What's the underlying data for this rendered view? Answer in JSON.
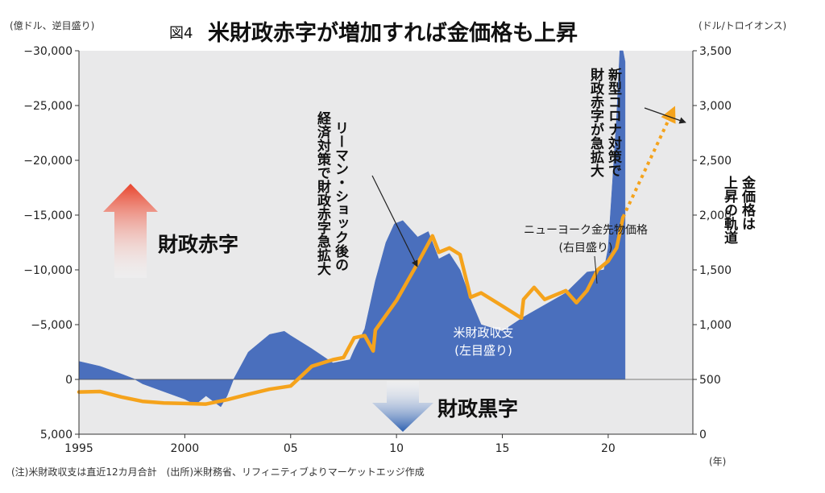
{
  "header": {
    "figure_no": "図4",
    "title": "米財政赤字が増加すれば金価格も上昇",
    "left_unit": "(億ドル、逆目盛り)",
    "right_unit": "(ドル/トロイオンス)"
  },
  "footer": {
    "note": "(注)米財政収支は直近12カ月合計　(出所)米財務省、リフィニティブよりマーケットエッジ作成",
    "year_unit": "(年)"
  },
  "labels": {
    "deficit": "財政赤字",
    "surplus": "財政黒字",
    "lehman_col1": "リーマン・ショック後の",
    "lehman_col2": "経済対策で財政赤字急拡大",
    "covid_col1": "新型コロナ対策で",
    "covid_col2": "財政赤字が急拡大",
    "gold_col1": "金価格は",
    "gold_col2": "上昇の軌道",
    "gold_series_1": "ニューヨーク金先物価格",
    "gold_series_2": "(右目盛り)",
    "balance_series_1": "米財政収支",
    "balance_series_2": "(左目盛り)"
  },
  "colors": {
    "balance": "#4a6fbd",
    "gold": "#f5a31c",
    "deficit_arrow": "#e8442c",
    "surplus_arrow": "#2c5fb0"
  },
  "chart_data": {
    "type": "area",
    "x_axis": {
      "range": [
        1995,
        2024
      ],
      "ticks": [
        1995,
        2000,
        2005,
        2010,
        2015,
        2020
      ],
      "tick_labels": [
        "1995",
        "2000",
        "05",
        "10",
        "15",
        "20"
      ]
    },
    "left_axis": {
      "inverted": true,
      "range": [
        5000,
        -30000
      ],
      "ticks": [
        5000,
        0,
        -5000,
        -10000,
        -15000,
        -20000,
        -25000,
        -30000
      ],
      "tick_labels": [
        "5,000",
        "0",
        "−5,000",
        "−10,000",
        "−15,000",
        "−20,000",
        "−25,000",
        "−30,000"
      ]
    },
    "right_axis": {
      "range": [
        0,
        3500
      ],
      "ticks": [
        0,
        500,
        1000,
        1500,
        2000,
        2500,
        3000,
        3500
      ],
      "tick_labels": [
        "0",
        "500",
        "1,000",
        "1,500",
        "2,000",
        "2,500",
        "3,000",
        "3,500"
      ]
    },
    "grid": false,
    "series": [
      {
        "name": "米財政収支",
        "type": "area",
        "axis": "left",
        "x": [
          1995,
          1996,
          1997,
          1997.6,
          1998,
          1999,
          2000,
          2000.5,
          2001,
          2001.7,
          2002,
          2002.3,
          2003,
          2004,
          2004.7,
          2005,
          2006,
          2007,
          2007.8,
          2008,
          2008.5,
          2009,
          2009.5,
          2009.9,
          2010.3,
          2011,
          2011.5,
          2012,
          2012.5,
          2013,
          2013.5,
          2014,
          2015,
          2016,
          2017,
          2018,
          2019,
          2019.8,
          2020,
          2020.2,
          2020.4,
          2020.55,
          2020.7,
          2020.8
        ],
        "values": [
          -1650,
          -1200,
          -500,
          -50,
          400,
          1100,
          1800,
          2300,
          1500,
          2500,
          1500,
          0,
          -2500,
          -4100,
          -4400,
          -4000,
          -2800,
          -1500,
          -1800,
          -2700,
          -4600,
          -9000,
          -12500,
          -14200,
          -14500,
          -13000,
          -13500,
          -11000,
          -11500,
          -10000,
          -7300,
          -5000,
          -4400,
          -5700,
          -6800,
          -7900,
          -9800,
          -10000,
          -12000,
          -18000,
          -24000,
          -30000,
          -30000,
          -29000
        ]
      },
      {
        "name": "ニューヨーク金先物価格",
        "type": "line",
        "axis": "right",
        "x": [
          1995,
          1996,
          1997,
          1998,
          1999,
          2000,
          2001,
          2002,
          2003,
          2004,
          2005,
          2006,
          2007,
          2007.5,
          2008,
          2008.5,
          2008.9,
          2009,
          2010,
          2011,
          2011.7,
          2012,
          2012.5,
          2013,
          2013.5,
          2014,
          2015,
          2015.9,
          2016,
          2016.5,
          2017,
          2018,
          2018.5,
          2019,
          2019.5,
          2020,
          2020.4,
          2020.7
        ],
        "values": [
          385,
          390,
          340,
          300,
          285,
          280,
          275,
          315,
          365,
          410,
          440,
          620,
          680,
          700,
          880,
          900,
          760,
          950,
          1220,
          1560,
          1810,
          1660,
          1700,
          1640,
          1250,
          1290,
          1170,
          1060,
          1230,
          1340,
          1230,
          1310,
          1200,
          1310,
          1500,
          1580,
          1700,
          1980
        ]
      },
      {
        "name": "金価格は上昇の軌道",
        "type": "line",
        "style": "dotted-arrow",
        "axis": "right",
        "x": [
          2020.7,
          2023
        ],
        "values": [
          1980,
          2930
        ]
      }
    ]
  }
}
